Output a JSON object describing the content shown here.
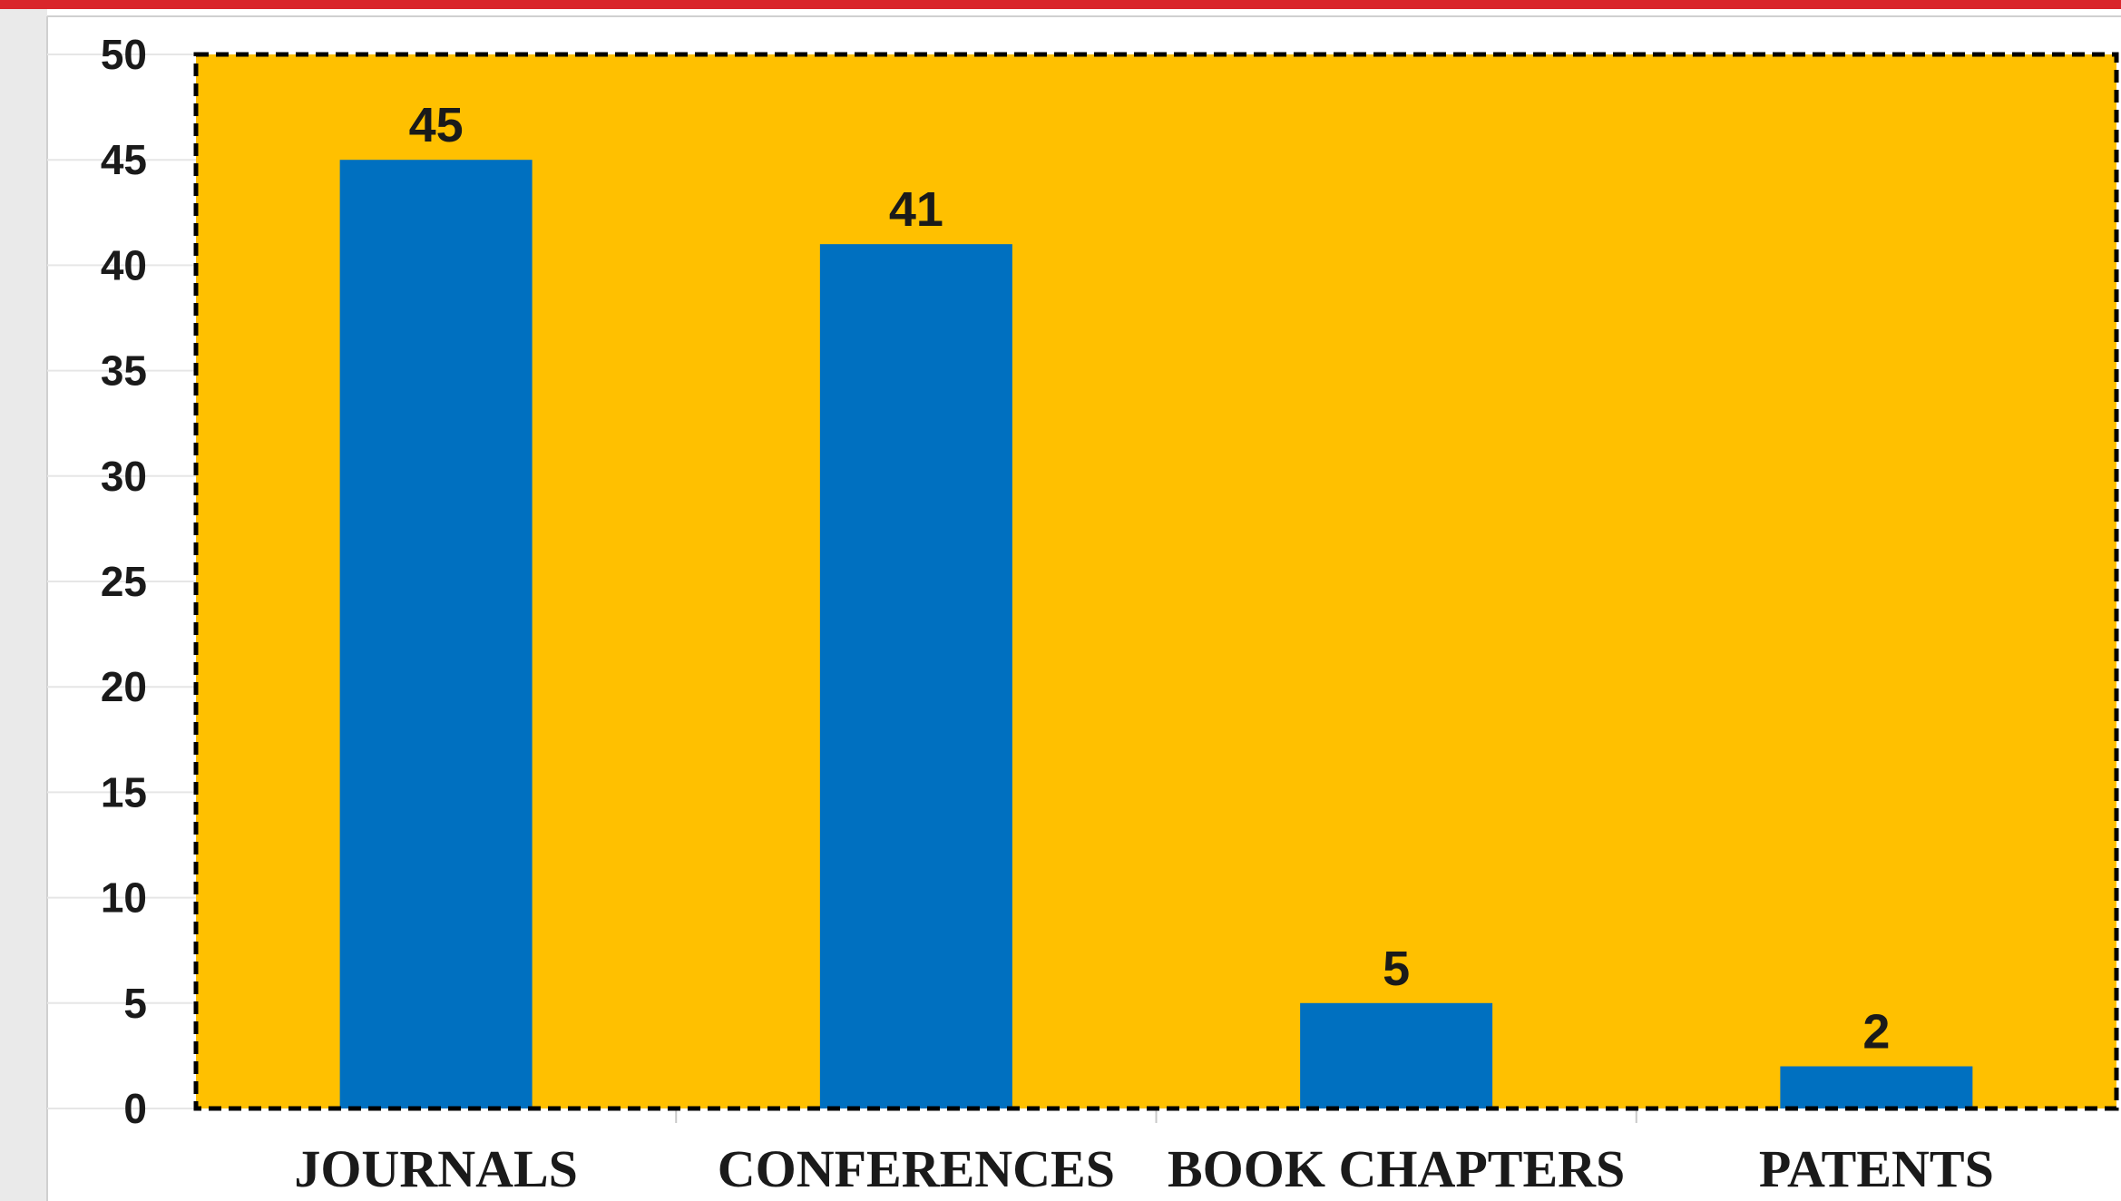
{
  "colors": {
    "top_accent": "#d9262b",
    "left_strip": "#eaeaea",
    "plot_background": "#ffc000",
    "bar": "#0070c0",
    "plot_border": "#000000"
  },
  "chart_data": {
    "type": "bar",
    "title": "",
    "xlabel": "",
    "ylabel": "",
    "categories": [
      "JOURNALS",
      "CONFERENCES",
      "BOOK CHAPTERS",
      "PATENTS"
    ],
    "values": [
      45,
      41,
      5,
      2
    ],
    "data_labels": [
      "45",
      "41",
      "5",
      "2"
    ],
    "ylim": [
      0,
      50
    ],
    "yticks": [
      0,
      5,
      10,
      15,
      20,
      25,
      30,
      35,
      40,
      45,
      50
    ],
    "ytick_labels": [
      "0",
      "5",
      "10",
      "15",
      "20",
      "25",
      "30",
      "35",
      "40",
      "45",
      "50"
    ],
    "grid": false,
    "legend": "none"
  }
}
